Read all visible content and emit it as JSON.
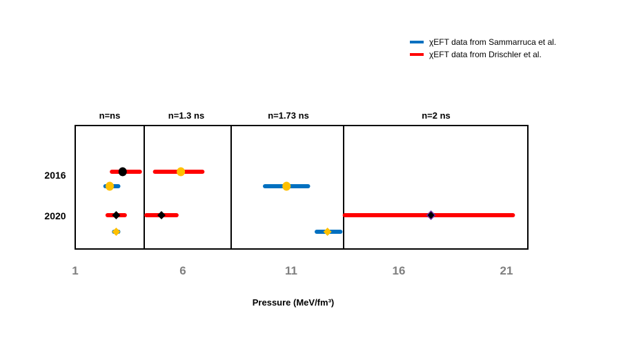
{
  "chart_data": {
    "type": "scatter",
    "xlabel": "Pressure (MeV/fm³)",
    "xlim": [
      1,
      22
    ],
    "xticks": [
      1,
      6,
      11,
      16,
      21
    ],
    "ycategories": [
      "2016",
      "2020"
    ],
    "regions": [
      {
        "label": "n=ns",
        "x_from": 1,
        "x_to": 4.1
      },
      {
        "label": "n=1.3 ns",
        "x_from": 4.1,
        "x_to": 8.2
      },
      {
        "label": "n=1.73 ns",
        "x_from": 8.2,
        "x_to": 13.4
      },
      {
        "label": "n=2 ns",
        "x_from": 13.4,
        "x_to": 22
      }
    ],
    "legend": [
      {
        "label": "χEFT data from Sammarruca et al.",
        "color": "#0070c0"
      },
      {
        "label": "χEFT data from Drischler et al.",
        "color": "#ff0000"
      }
    ],
    "series": [
      {
        "name": "2016 Drischler n=ns",
        "year": "2016",
        "row": "upper",
        "color": "#ff0000",
        "xmin": 2.7,
        "xmax": 4.0,
        "point": 3.2,
        "marker": "circle",
        "marker_color": "#000000"
      },
      {
        "name": "2016 Sammarruca n=ns",
        "year": "2016",
        "row": "lower",
        "color": "#0070c0",
        "xmin": 2.4,
        "xmax": 3.0,
        "point": 2.6,
        "marker": "circle",
        "marker_color": "#ffc000"
      },
      {
        "name": "2016 Drischler n=1.3ns",
        "year": "2016",
        "row": "upper",
        "color": "#ff0000",
        "xmin": 4.7,
        "xmax": 6.9,
        "point": 5.9,
        "marker": "circle",
        "marker_color": "#ffc000"
      },
      {
        "name": "2016 Sammarruca n=1.73ns",
        "year": "2016",
        "row": "lower",
        "color": "#0070c0",
        "xmin": 9.8,
        "xmax": 11.8,
        "point": 10.8,
        "marker": "circle",
        "marker_color": "#ffc000"
      },
      {
        "name": "2020 Drischler n=ns",
        "year": "2020",
        "row": "upper",
        "color": "#ff0000",
        "xmin": 2.5,
        "xmax": 3.3,
        "point": 2.9,
        "marker": "diamond",
        "marker_color": "#000000"
      },
      {
        "name": "2020 Sammarruca n=ns",
        "year": "2020",
        "row": "lower",
        "color": "#0070c0",
        "xmin": 2.8,
        "xmax": 3.0,
        "point": 2.9,
        "marker": "diamond",
        "marker_color": "#ffc000"
      },
      {
        "name": "2020 Drischler n=1.3ns",
        "year": "2020",
        "row": "upper",
        "color": "#ff0000",
        "xmin": 4.3,
        "xmax": 5.7,
        "point": 5.0,
        "marker": "diamond",
        "marker_color": "#000000"
      },
      {
        "name": "2020 Sammarruca n=1.73ns",
        "year": "2020",
        "row": "lower",
        "color": "#0070c0",
        "xmin": 12.2,
        "xmax": 13.3,
        "point": 12.7,
        "marker": "diamond",
        "marker_color": "#ffc000"
      },
      {
        "name": "2020 Drischler n=2ns",
        "year": "2020",
        "row": "upper",
        "color": "#ff0000",
        "xmin": 13.5,
        "xmax": 21.3,
        "point": 17.5,
        "marker": "diamond",
        "marker_color": "#000000"
      }
    ]
  }
}
